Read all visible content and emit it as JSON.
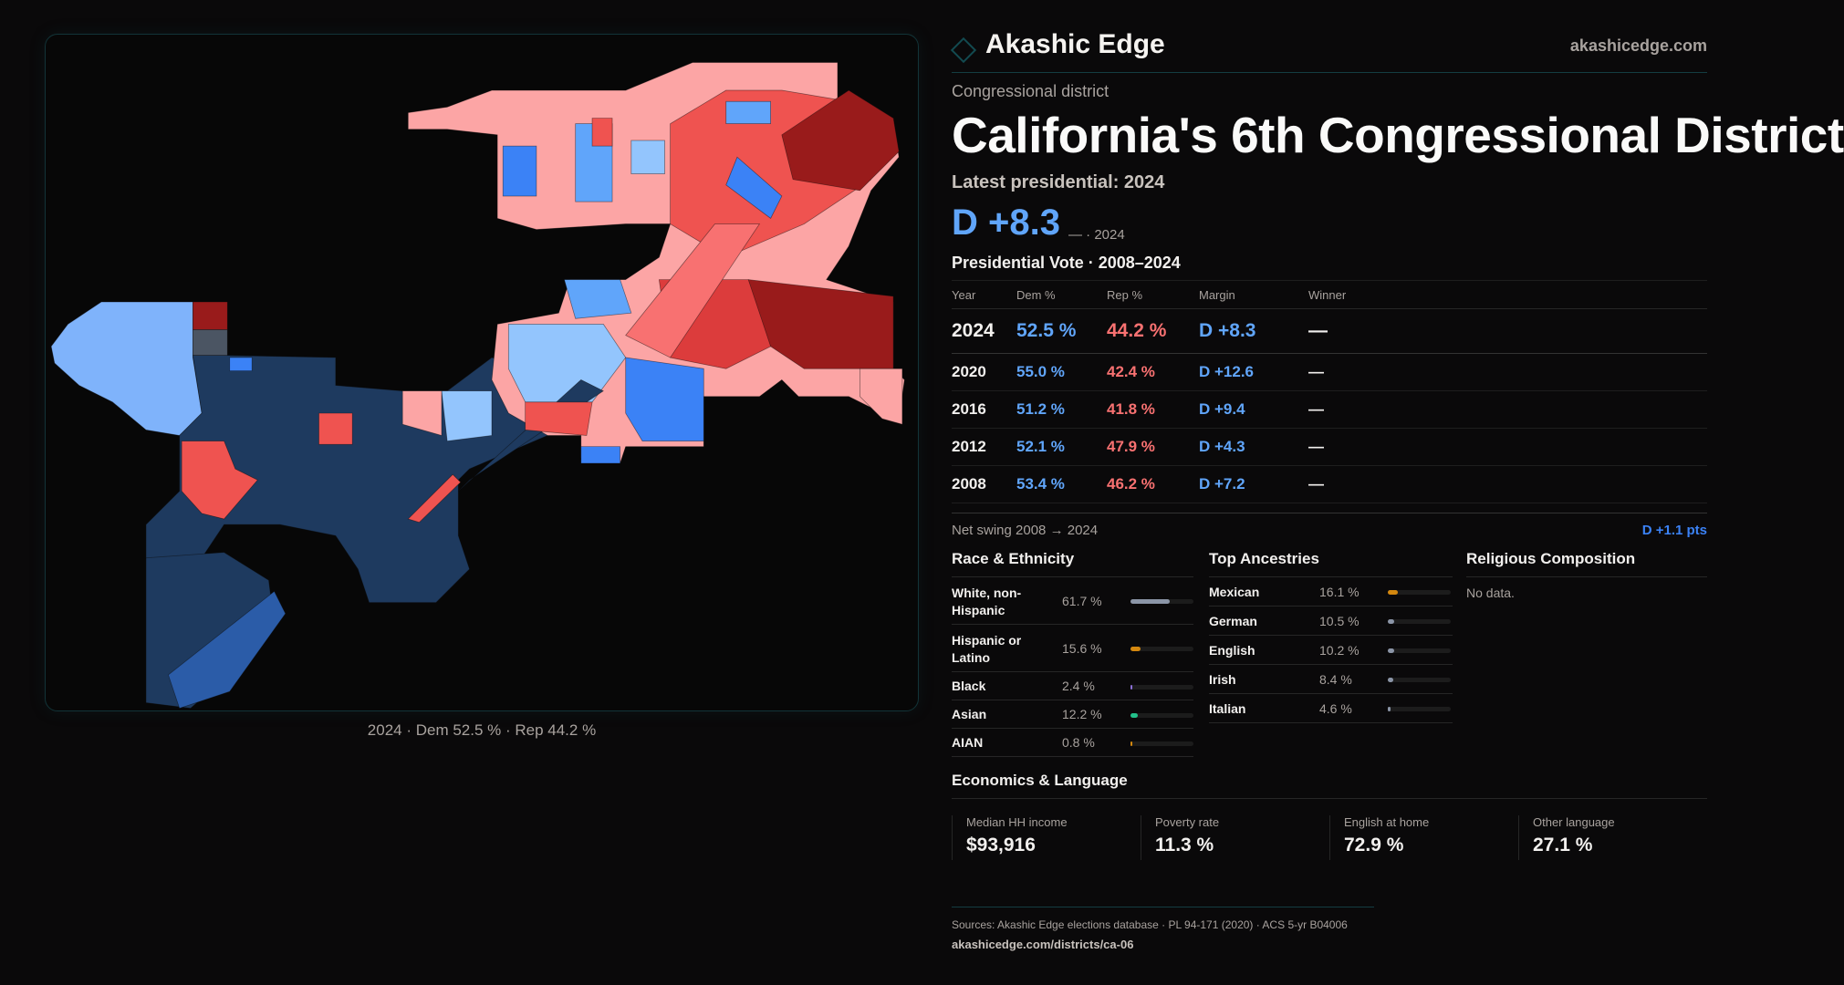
{
  "map": {
    "caption": "2024 · Dem 52.5 % · Rep 44.2 %",
    "colors": {
      "safe_dem": "#1e3a5f",
      "dem": "#3b82f6",
      "lean_dem": "#93c5fd",
      "lean_rep": "#fca5a5",
      "rep": "#ef5350",
      "safe_rep": "#991b1b"
    }
  },
  "header": {
    "brand": "Akashic Edge",
    "site": "akashicedge.com"
  },
  "kicker": "Congressional district",
  "title": "California's 6th Congressional District",
  "latest_label": "Latest presidential: 2024",
  "latest_margin": "D +8.3",
  "latest_sub": "— · 2024",
  "vote": {
    "heading": "Presidential Vote · 2008–2024",
    "columns": [
      "Year",
      "Dem %",
      "Rep %",
      "Margin",
      "Winner"
    ],
    "rows": [
      {
        "year": "2024",
        "dem": "52.5 %",
        "rep": "44.2 %",
        "margin": "D +8.3",
        "winner": "—"
      },
      {
        "year": "2020",
        "dem": "55.0 %",
        "rep": "42.4 %",
        "margin": "D +12.6",
        "winner": "—"
      },
      {
        "year": "2016",
        "dem": "51.2 %",
        "rep": "41.8 %",
        "margin": "D +9.4",
        "winner": "—"
      },
      {
        "year": "2012",
        "dem": "52.1 %",
        "rep": "47.9 %",
        "margin": "D +4.3",
        "winner": "—"
      },
      {
        "year": "2008",
        "dem": "53.4 %",
        "rep": "46.2 %",
        "margin": "D +7.2",
        "winner": "—"
      }
    ],
    "swing_label": "Net swing 2008 → 2024",
    "swing_value": "D +1.1 pts"
  },
  "race": {
    "heading": "Race & Ethnicity",
    "items": [
      {
        "label": "White, non-Hispanic",
        "pct": "61.7 %",
        "value": 61.7,
        "color": "#8b95a7"
      },
      {
        "label": "Hispanic or Latino",
        "pct": "15.6 %",
        "value": 15.6,
        "color": "#d4880f"
      },
      {
        "label": "Black",
        "pct": "2.4 %",
        "value": 2.4,
        "color": "#8b6fd6"
      },
      {
        "label": "Asian",
        "pct": "12.2 %",
        "value": 12.2,
        "color": "#22c08a"
      },
      {
        "label": "AIAN",
        "pct": "0.8 %",
        "value": 0.8,
        "color": "#d4880f"
      }
    ]
  },
  "ancestry": {
    "heading": "Top Ancestries",
    "items": [
      {
        "label": "Mexican",
        "pct": "16.1 %",
        "value": 16.1,
        "color": "#d4880f"
      },
      {
        "label": "German",
        "pct": "10.5 %",
        "value": 10.5,
        "color": "#8b95a7"
      },
      {
        "label": "English",
        "pct": "10.2 %",
        "value": 10.2,
        "color": "#8b95a7"
      },
      {
        "label": "Irish",
        "pct": "8.4 %",
        "value": 8.4,
        "color": "#8b95a7"
      },
      {
        "label": "Italian",
        "pct": "4.6 %",
        "value": 4.6,
        "color": "#8b95a7"
      }
    ]
  },
  "religion": {
    "heading": "Religious Composition",
    "empty": "No data."
  },
  "econ": {
    "heading": "Economics & Language",
    "cards": [
      {
        "label": "Median HH income",
        "value": "$93,916"
      },
      {
        "label": "Poverty rate",
        "value": "11.3 %"
      },
      {
        "label": "English at home",
        "value": "72.9 %"
      },
      {
        "label": "Other language",
        "value": "27.1 %"
      }
    ]
  },
  "footer": {
    "sources": "Sources: Akashic Edge elections database · PL 94-171 (2020) · ACS 5-yr B04006",
    "url": "akashicedge.com/districts/ca-06"
  }
}
